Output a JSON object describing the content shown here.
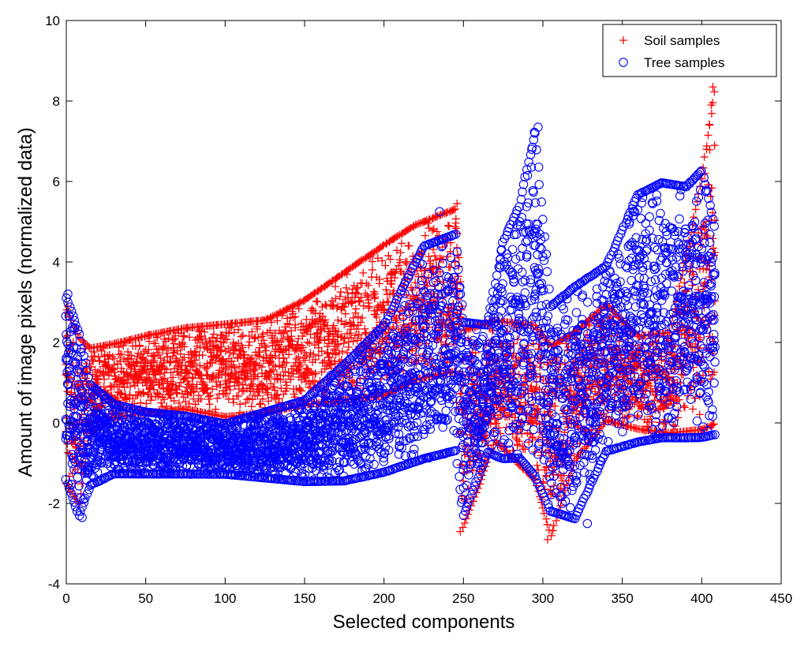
{
  "chart_data": {
    "type": "scatter",
    "xlabel": "Selected components",
    "ylabel": "Amount of image pixels (normalized data)",
    "xlim": [
      0,
      450
    ],
    "ylim": [
      -4,
      10
    ],
    "xticks": [
      0,
      50,
      100,
      150,
      200,
      250,
      300,
      350,
      400,
      450
    ],
    "yticks": [
      -4,
      -2,
      0,
      2,
      4,
      6,
      8,
      10
    ],
    "grid": false,
    "legend_position": "top-right",
    "series": [
      {
        "name": "Soil samples",
        "marker": "plus",
        "color": "#ff0000",
        "envelope": [
          {
            "x": 0,
            "min": -1.6,
            "max": 2.9
          },
          {
            "x": 8,
            "min": -2.1,
            "max": 2.2
          },
          {
            "x": 15,
            "min": -0.3,
            "max": 1.9
          },
          {
            "x": 30,
            "min": 0.1,
            "max": 2.0
          },
          {
            "x": 50,
            "min": 0.2,
            "max": 2.2
          },
          {
            "x": 75,
            "min": 0.3,
            "max": 2.4
          },
          {
            "x": 100,
            "min": 0.1,
            "max": 2.5
          },
          {
            "x": 125,
            "min": 0.2,
            "max": 2.6
          },
          {
            "x": 150,
            "min": 0.4,
            "max": 3.1
          },
          {
            "x": 175,
            "min": 0.5,
            "max": 3.8
          },
          {
            "x": 200,
            "min": 0.6,
            "max": 4.5
          },
          {
            "x": 220,
            "min": 1.0,
            "max": 5.0
          },
          {
            "x": 245,
            "min": 1.2,
            "max": 5.4
          },
          {
            "x": 250,
            "min": -2.7,
            "max": 2.4
          },
          {
            "x": 270,
            "min": -0.5,
            "max": 2.6
          },
          {
            "x": 295,
            "min": -1.5,
            "max": 2.5
          },
          {
            "x": 305,
            "min": -2.9,
            "max": 2.0
          },
          {
            "x": 320,
            "min": -1.0,
            "max": 2.3
          },
          {
            "x": 340,
            "min": 0.0,
            "max": 3.0
          },
          {
            "x": 360,
            "min": -0.2,
            "max": 2.2
          },
          {
            "x": 380,
            "min": -0.3,
            "max": 2.3
          },
          {
            "x": 400,
            "min": -0.3,
            "max": 6.2
          },
          {
            "x": 408,
            "min": -0.2,
            "max": 8.4
          }
        ],
        "outliers": [
          {
            "x": 407,
            "y": 8.35
          },
          {
            "x": 406,
            "y": 7.9
          },
          {
            "x": 405,
            "y": 7.4
          },
          {
            "x": 403,
            "y": 6.8
          },
          {
            "x": 402,
            "y": 6.2
          },
          {
            "x": 246,
            "y": 5.45
          },
          {
            "x": 225,
            "y": 5.0
          },
          {
            "x": 1,
            "y": 2.9
          },
          {
            "x": 303,
            "y": -2.9
          },
          {
            "x": 248,
            "y": -2.7
          }
        ]
      },
      {
        "name": "Tree samples",
        "marker": "circle",
        "color": "#0000ff",
        "envelope": [
          {
            "x": 0,
            "min": -1.5,
            "max": 3.2
          },
          {
            "x": 8,
            "min": -2.4,
            "max": 2.3
          },
          {
            "x": 15,
            "min": -1.6,
            "max": 1.0
          },
          {
            "x": 30,
            "min": -1.3,
            "max": 0.5
          },
          {
            "x": 50,
            "min": -1.3,
            "max": 0.3
          },
          {
            "x": 75,
            "min": -1.3,
            "max": 0.2
          },
          {
            "x": 100,
            "min": -1.3,
            "max": 0.0
          },
          {
            "x": 125,
            "min": -1.4,
            "max": 0.3
          },
          {
            "x": 150,
            "min": -1.5,
            "max": 0.6
          },
          {
            "x": 175,
            "min": -1.5,
            "max": 1.5
          },
          {
            "x": 200,
            "min": -1.3,
            "max": 2.5
          },
          {
            "x": 225,
            "min": -1.0,
            "max": 4.5
          },
          {
            "x": 245,
            "min": -0.8,
            "max": 4.8
          },
          {
            "x": 250,
            "min": -2.4,
            "max": 2.6
          },
          {
            "x": 265,
            "min": -0.8,
            "max": 2.5
          },
          {
            "x": 275,
            "min": -1.0,
            "max": 4.6
          },
          {
            "x": 285,
            "min": -1.0,
            "max": 5.5
          },
          {
            "x": 295,
            "min": -1.5,
            "max": 7.4
          },
          {
            "x": 305,
            "min": -2.3,
            "max": 3.0
          },
          {
            "x": 320,
            "min": -2.5,
            "max": 3.5
          },
          {
            "x": 340,
            "min": -0.8,
            "max": 4.0
          },
          {
            "x": 360,
            "min": -0.6,
            "max": 5.8
          },
          {
            "x": 375,
            "min": -0.5,
            "max": 6.1
          },
          {
            "x": 390,
            "min": -0.5,
            "max": 6.0
          },
          {
            "x": 400,
            "min": -0.5,
            "max": 6.4
          },
          {
            "x": 408,
            "min": -0.4,
            "max": 5.0
          }
        ],
        "outliers": [
          {
            "x": 297,
            "y": 7.35
          },
          {
            "x": 295,
            "y": 7.2
          },
          {
            "x": 293,
            "y": 6.8
          },
          {
            "x": 235,
            "y": 5.25
          },
          {
            "x": 1,
            "y": 3.2
          },
          {
            "x": 10,
            "y": -2.35
          },
          {
            "x": 328,
            "y": -2.5
          }
        ]
      }
    ]
  }
}
